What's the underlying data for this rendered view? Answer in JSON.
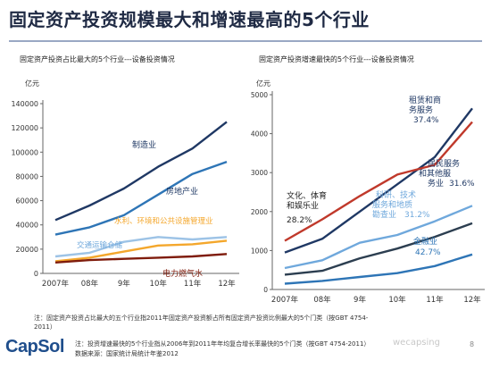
{
  "slide": {
    "title": "固定资产投资规模最大和增速最高的5个行业",
    "logo": "CapSol",
    "page_number": "8",
    "watermark": "wecapsing"
  },
  "footnotes": {
    "note1_line1": "注：固定资产投资占比最大的五个行业指2011年固定资产投资额占所有固定资产投资比例最大的5个门类（按GBT 4754-",
    "note1_line2": "2011）",
    "note2": "注：投资增速最快的5个行业指从2006年到2011年年均复合增长率最快的5个门类（按GBT 4754-2011）",
    "source": "数据来源：国家统计局统计年鉴2012"
  },
  "colors": {
    "dark_blue": "#1f3864",
    "mid_blue": "#2e75b6",
    "light_blue": "#9dc3e6",
    "orange": "#f4a72c",
    "dark_red": "#7f1c0c",
    "red": "#c0392b",
    "cyan": "#6fa8dc"
  },
  "chart_data": [
    {
      "type": "line",
      "title": "固定资产投资占比最大的5个行业---设备投资情况",
      "unit_label": "亿元",
      "categories": [
        "2007年",
        "08年",
        "9年",
        "10年",
        "11年",
        "12年"
      ],
      "ylim": [
        0,
        140000
      ],
      "yticks": [
        "0",
        "20000",
        "40000",
        "60000",
        "80000",
        "100000",
        "120000",
        "140000"
      ],
      "grid": false,
      "series": [
        {
          "name": "制造业",
          "color": "#1f3864",
          "values": [
            44000,
            56000,
            70000,
            88000,
            103000,
            125000
          ]
        },
        {
          "name": "房地产业",
          "color": "#2e75b6",
          "values": [
            32000,
            38000,
            48000,
            65000,
            82000,
            92000
          ]
        },
        {
          "name": "水利、环境和公共设施管理业",
          "color": "#f4a72c",
          "values": [
            10000,
            13000,
            18000,
            23000,
            24000,
            27000
          ]
        },
        {
          "name": "交通运输仓储",
          "color": "#9dc3e6",
          "values": [
            14000,
            17000,
            26000,
            30000,
            28000,
            30000
          ]
        },
        {
          "name": "电力燃气水",
          "color": "#7f1c0c",
          "values": [
            9000,
            11000,
            12000,
            13000,
            14000,
            16000
          ]
        }
      ]
    },
    {
      "type": "line",
      "title": "固定资产投资增速最快的5个行业---设备投资情况",
      "unit_label": "亿元",
      "categories": [
        "2007年",
        "08年",
        "9年",
        "10年",
        "11年",
        "12年"
      ],
      "ylim": [
        0,
        5000
      ],
      "yticks": [
        "0",
        "1000",
        "2000",
        "3000",
        "4000",
        "5000"
      ],
      "grid": false,
      "series": [
        {
          "name": "租赁和商务服务",
          "rate": "37.4%",
          "color": "#1f3864",
          "values": [
            950,
            1300,
            2000,
            2700,
            3400,
            4650
          ]
        },
        {
          "name": "文化、体育和娱乐业",
          "rate": "28.2%",
          "color": "#c0392b",
          "values": [
            1250,
            1800,
            2400,
            2950,
            3200,
            4300
          ]
        },
        {
          "name": "科研、技术服务和地质勘查业",
          "rate": "31.2%",
          "color": "#6fa8dc",
          "values": [
            550,
            750,
            1200,
            1400,
            1750,
            2150
          ]
        },
        {
          "name": "居民服务和其他服务业",
          "rate": "31.6%",
          "color": "#2c3e50",
          "values": [
            380,
            480,
            800,
            1050,
            1350,
            1700
          ]
        },
        {
          "name": "金融业",
          "rate": "42.7%",
          "color": "#2e75b6",
          "values": [
            150,
            220,
            320,
            420,
            600,
            900
          ]
        }
      ]
    }
  ]
}
